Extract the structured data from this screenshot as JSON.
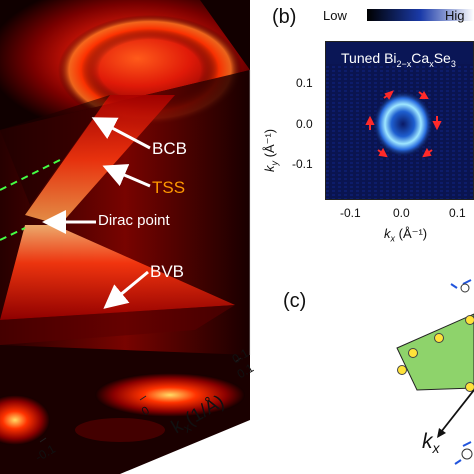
{
  "panel_a": {
    "labels": {
      "bcb": "BCB",
      "tss": "TSS",
      "dirac": "Dirac point",
      "bvb": "BVB"
    },
    "axis": {
      "label": "k_x(1/Å)",
      "label_main": "k",
      "label_sub": "x",
      "label_unit": "(1/Å)",
      "ticks": [
        "0.1",
        "0",
        "-0.1"
      ],
      "ticks_right": [
        "0.1",
        "0.1"
      ]
    },
    "colors": {
      "tss": "#ff9900",
      "dashed": "#44ff44"
    }
  },
  "panel_b": {
    "tag": "(b)",
    "colorbar": {
      "low": "Low",
      "high": "Hig"
    },
    "title": "Tuned Bi₂₋ₓCaₓSe₃",
    "title_parts": {
      "a": "Tuned Bi",
      "b": "2−x",
      "c": "Ca",
      "d": "x",
      "e": "Se",
      "f": "3"
    },
    "y_axis": {
      "label_main": "k",
      "label_sub": "y",
      "label_unit": " (Å⁻¹)",
      "ticks": [
        "0.1",
        "0.0",
        "-0.1"
      ]
    },
    "x_axis": {
      "label_main": "k",
      "label_sub": "x",
      "label_unit": " (Å⁻¹)",
      "ticks": [
        "-0.1",
        "0.0",
        "0.1",
        "0"
      ]
    }
  },
  "panel_c": {
    "tag": "(c)",
    "axis_main": "k",
    "axis_sub": "x"
  }
}
